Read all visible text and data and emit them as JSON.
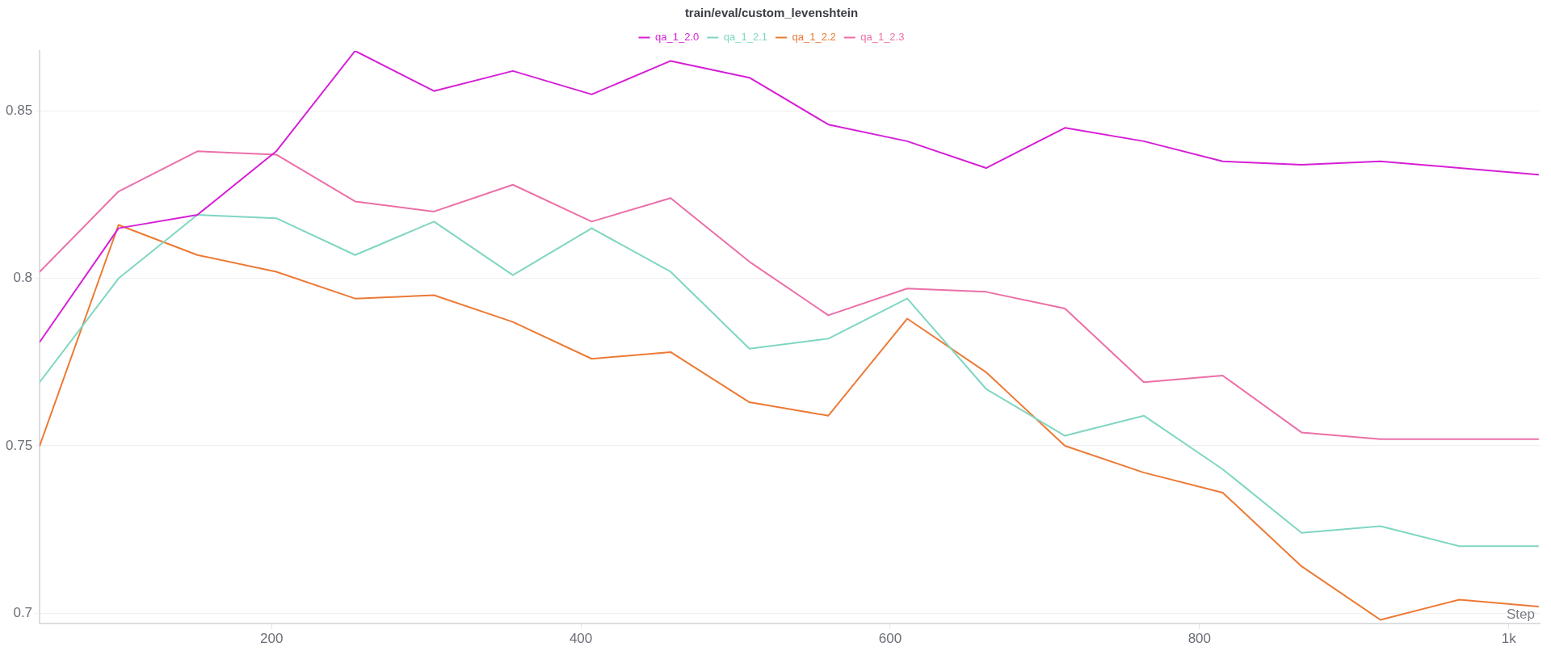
{
  "chart_data": {
    "type": "line",
    "title": "train/eval/custom_levenshtein",
    "xlabel": "Step",
    "x": [
      50,
      101,
      152,
      203,
      254,
      305,
      356,
      407,
      458,
      509,
      560,
      611,
      662,
      713,
      764,
      815,
      866,
      917,
      968,
      1019
    ],
    "series": [
      {
        "name": "qa_1_2.0",
        "color": "#d61fd6",
        "values": [
          0.781,
          0.815,
          0.819,
          0.838,
          0.868,
          0.856,
          0.862,
          0.855,
          0.865,
          0.86,
          0.846,
          0.841,
          0.833,
          0.845,
          0.841,
          0.835,
          0.834,
          0.835,
          0.833,
          0.831
        ]
      },
      {
        "name": "qa_1_2.1",
        "color": "#7fd6c2",
        "values": [
          0.769,
          0.8,
          0.819,
          0.818,
          0.807,
          0.817,
          0.801,
          0.815,
          0.802,
          0.779,
          0.782,
          0.794,
          0.767,
          0.753,
          0.759,
          0.743,
          0.724,
          0.726,
          0.72,
          0.72
        ]
      },
      {
        "name": "qa_1_2.2",
        "color": "#ec7a35",
        "values": [
          0.75,
          0.816,
          0.807,
          0.802,
          0.794,
          0.795,
          0.787,
          0.776,
          0.778,
          0.763,
          0.759,
          0.788,
          0.772,
          0.75,
          0.742,
          0.736,
          0.714,
          0.698,
          0.704,
          0.702
        ]
      },
      {
        "name": "qa_1_2.3",
        "color": "#ec6fa8",
        "values": [
          0.802,
          0.826,
          0.838,
          0.837,
          0.823,
          0.82,
          0.828,
          0.817,
          0.824,
          0.805,
          0.789,
          0.797,
          0.796,
          0.791,
          0.769,
          0.771,
          0.754,
          0.752,
          0.752,
          0.752
        ]
      }
    ],
    "xlim": [
      50,
      1020
    ],
    "xticks": [
      200,
      400,
      600,
      800,
      {
        "value": 1000,
        "label": "1k"
      }
    ],
    "ylim": [
      0.697,
      0.868
    ],
    "yticks": [
      0.7,
      0.75,
      0.8,
      0.85
    ],
    "grid": "y",
    "legend": "top",
    "line_style": "solid"
  }
}
